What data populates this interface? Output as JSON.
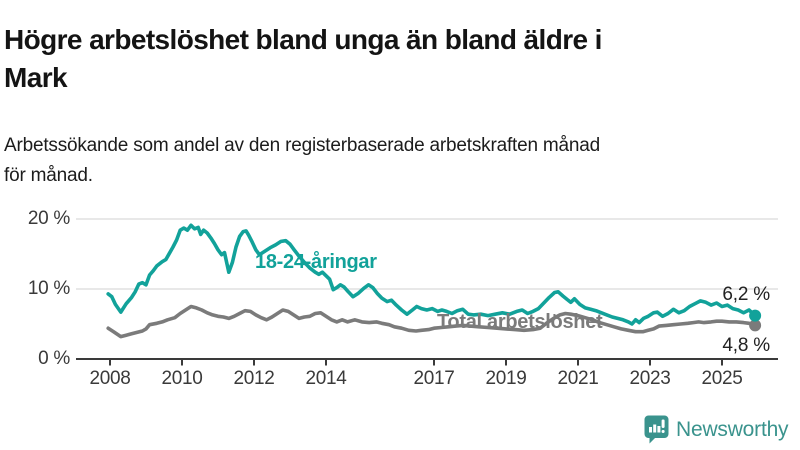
{
  "header": {
    "title_line1": "Högre arbetslöshet bland unga än bland äldre i",
    "title_line2": "Mark",
    "subtitle_line1": "Arbetssökande som andel av den registerbaserade arbetskraften månad",
    "subtitle_line2": "för månad."
  },
  "chart_data": {
    "type": "line",
    "unit": "%",
    "x_axis": {
      "ticks": [
        {
          "year": 2008,
          "label": "2008"
        },
        {
          "year": 2010,
          "label": "2010"
        },
        {
          "year": 2012,
          "label": "2012"
        },
        {
          "year": 2014,
          "label": "2014"
        },
        {
          "year": 2017,
          "label": "2017"
        },
        {
          "year": 2019,
          "label": "2019"
        },
        {
          "year": 2021,
          "label": "2021"
        },
        {
          "year": 2023,
          "label": "2023"
        },
        {
          "year": 2025,
          "label": "2025"
        }
      ],
      "range": [
        2007.7,
        2026.2
      ]
    },
    "y_axis": {
      "ticks": [
        {
          "value": 0,
          "label": "0 %"
        },
        {
          "value": 10,
          "label": "10 %"
        },
        {
          "value": 20,
          "label": "20 %"
        }
      ],
      "range": [
        0,
        21
      ],
      "grid": true
    },
    "colors": {
      "young": "#12a29a",
      "total": "#7b7b7b",
      "grid": "#d9d9d9",
      "axis": "#3a3a3a"
    },
    "series": [
      {
        "name": "18-24-åringar",
        "color": "#12a29a",
        "end_label": "6,2 %",
        "end_value": 6.2,
        "points": [
          [
            2007.95,
            9.3
          ],
          [
            2008.05,
            8.9
          ],
          [
            2008.15,
            7.8
          ],
          [
            2008.3,
            6.7
          ],
          [
            2008.45,
            7.9
          ],
          [
            2008.6,
            8.8
          ],
          [
            2008.7,
            9.6
          ],
          [
            2008.8,
            10.7
          ],
          [
            2008.9,
            10.9
          ],
          [
            2009.0,
            10.6
          ],
          [
            2009.1,
            12.0
          ],
          [
            2009.2,
            12.6
          ],
          [
            2009.3,
            13.3
          ],
          [
            2009.45,
            13.9
          ],
          [
            2009.55,
            14.2
          ],
          [
            2009.65,
            15.1
          ],
          [
            2009.75,
            16.0
          ],
          [
            2009.85,
            17.0
          ],
          [
            2009.95,
            18.4
          ],
          [
            2010.05,
            18.7
          ],
          [
            2010.15,
            18.4
          ],
          [
            2010.25,
            19.1
          ],
          [
            2010.35,
            18.6
          ],
          [
            2010.45,
            18.8
          ],
          [
            2010.52,
            17.8
          ],
          [
            2010.6,
            18.4
          ],
          [
            2010.7,
            18.0
          ],
          [
            2010.8,
            17.3
          ],
          [
            2010.9,
            16.5
          ],
          [
            2011.0,
            15.6
          ],
          [
            2011.1,
            14.9
          ],
          [
            2011.18,
            15.2
          ],
          [
            2011.3,
            12.4
          ],
          [
            2011.4,
            13.8
          ],
          [
            2011.5,
            16.0
          ],
          [
            2011.6,
            17.5
          ],
          [
            2011.7,
            18.2
          ],
          [
            2011.78,
            18.3
          ],
          [
            2011.85,
            17.7
          ],
          [
            2011.95,
            16.7
          ],
          [
            2012.05,
            15.6
          ],
          [
            2012.15,
            14.9
          ],
          [
            2012.3,
            15.4
          ],
          [
            2012.45,
            15.9
          ],
          [
            2012.6,
            16.3
          ],
          [
            2012.75,
            16.8
          ],
          [
            2012.88,
            16.9
          ],
          [
            2013.0,
            16.4
          ],
          [
            2013.1,
            15.7
          ],
          [
            2013.25,
            14.7
          ],
          [
            2013.4,
            13.8
          ],
          [
            2013.55,
            13.0
          ],
          [
            2013.7,
            12.4
          ],
          [
            2013.8,
            12.1
          ],
          [
            2013.9,
            12.4
          ],
          [
            2014.0,
            11.9
          ],
          [
            2014.1,
            11.4
          ],
          [
            2014.2,
            9.9
          ],
          [
            2014.3,
            10.2
          ],
          [
            2014.4,
            10.6
          ],
          [
            2014.5,
            10.3
          ],
          [
            2014.62,
            9.6
          ],
          [
            2014.75,
            8.9
          ],
          [
            2014.9,
            9.4
          ],
          [
            2015.05,
            10.1
          ],
          [
            2015.18,
            10.6
          ],
          [
            2015.3,
            10.2
          ],
          [
            2015.42,
            9.4
          ],
          [
            2015.55,
            8.7
          ],
          [
            2015.7,
            8.2
          ],
          [
            2015.82,
            8.4
          ],
          [
            2015.95,
            7.7
          ],
          [
            2016.1,
            7.0
          ],
          [
            2016.25,
            6.4
          ],
          [
            2016.4,
            7.0
          ],
          [
            2016.52,
            7.5
          ],
          [
            2016.65,
            7.2
          ],
          [
            2016.8,
            7.0
          ],
          [
            2016.95,
            7.2
          ],
          [
            2017.1,
            6.8
          ],
          [
            2017.22,
            7.0
          ],
          [
            2017.35,
            6.8
          ],
          [
            2017.5,
            6.5
          ],
          [
            2017.65,
            6.9
          ],
          [
            2017.8,
            7.1
          ],
          [
            2017.95,
            6.4
          ],
          [
            2018.1,
            6.3
          ],
          [
            2018.3,
            6.4
          ],
          [
            2018.5,
            6.2
          ],
          [
            2018.7,
            6.4
          ],
          [
            2018.9,
            6.6
          ],
          [
            2019.1,
            6.4
          ],
          [
            2019.3,
            6.8
          ],
          [
            2019.45,
            7.0
          ],
          [
            2019.6,
            6.5
          ],
          [
            2019.75,
            6.8
          ],
          [
            2019.9,
            7.2
          ],
          [
            2020.05,
            8.0
          ],
          [
            2020.2,
            8.8
          ],
          [
            2020.35,
            9.5
          ],
          [
            2020.45,
            9.6
          ],
          [
            2020.58,
            9.0
          ],
          [
            2020.7,
            8.5
          ],
          [
            2020.8,
            8.1
          ],
          [
            2020.9,
            8.6
          ],
          [
            2021.05,
            7.8
          ],
          [
            2021.2,
            7.3
          ],
          [
            2021.35,
            7.1
          ],
          [
            2021.5,
            6.9
          ],
          [
            2021.65,
            6.6
          ],
          [
            2021.8,
            6.3
          ],
          [
            2021.95,
            6.0
          ],
          [
            2022.1,
            5.8
          ],
          [
            2022.25,
            5.6
          ],
          [
            2022.4,
            5.3
          ],
          [
            2022.5,
            5.0
          ],
          [
            2022.6,
            5.6
          ],
          [
            2022.7,
            5.2
          ],
          [
            2022.82,
            5.8
          ],
          [
            2022.95,
            6.1
          ],
          [
            2023.1,
            6.6
          ],
          [
            2023.2,
            6.7
          ],
          [
            2023.35,
            6.1
          ],
          [
            2023.5,
            6.5
          ],
          [
            2023.65,
            7.1
          ],
          [
            2023.8,
            6.6
          ],
          [
            2023.95,
            6.9
          ],
          [
            2024.1,
            7.5
          ],
          [
            2024.25,
            7.9
          ],
          [
            2024.4,
            8.3
          ],
          [
            2024.55,
            8.1
          ],
          [
            2024.7,
            7.7
          ],
          [
            2024.85,
            8.0
          ],
          [
            2025.0,
            7.5
          ],
          [
            2025.15,
            7.7
          ],
          [
            2025.3,
            7.2
          ],
          [
            2025.45,
            7.0
          ],
          [
            2025.6,
            6.6
          ],
          [
            2025.75,
            7.0
          ],
          [
            2025.92,
            6.2
          ]
        ]
      },
      {
        "name": "Total arbetslöshet",
        "color": "#7b7b7b",
        "end_label": "4,8 %",
        "end_value": 4.8,
        "points": [
          [
            2007.95,
            4.4
          ],
          [
            2008.1,
            3.9
          ],
          [
            2008.3,
            3.2
          ],
          [
            2008.45,
            3.4
          ],
          [
            2008.6,
            3.6
          ],
          [
            2008.75,
            3.8
          ],
          [
            2008.9,
            4.0
          ],
          [
            2009.0,
            4.3
          ],
          [
            2009.1,
            4.9
          ],
          [
            2009.3,
            5.1
          ],
          [
            2009.45,
            5.3
          ],
          [
            2009.6,
            5.6
          ],
          [
            2009.8,
            5.9
          ],
          [
            2009.95,
            6.5
          ],
          [
            2010.1,
            7.0
          ],
          [
            2010.25,
            7.5
          ],
          [
            2010.4,
            7.3
          ],
          [
            2010.55,
            7.0
          ],
          [
            2010.7,
            6.6
          ],
          [
            2010.85,
            6.3
          ],
          [
            2011.0,
            6.1
          ],
          [
            2011.15,
            6.0
          ],
          [
            2011.3,
            5.8
          ],
          [
            2011.45,
            6.1
          ],
          [
            2011.6,
            6.5
          ],
          [
            2011.75,
            6.9
          ],
          [
            2011.9,
            6.8
          ],
          [
            2012.05,
            6.3
          ],
          [
            2012.2,
            5.9
          ],
          [
            2012.35,
            5.6
          ],
          [
            2012.5,
            6.0
          ],
          [
            2012.65,
            6.5
          ],
          [
            2012.8,
            7.0
          ],
          [
            2012.95,
            6.8
          ],
          [
            2013.1,
            6.3
          ],
          [
            2013.25,
            5.8
          ],
          [
            2013.4,
            6.0
          ],
          [
            2013.55,
            6.1
          ],
          [
            2013.7,
            6.5
          ],
          [
            2013.85,
            6.6
          ],
          [
            2014.0,
            6.1
          ],
          [
            2014.15,
            5.6
          ],
          [
            2014.3,
            5.3
          ],
          [
            2014.45,
            5.6
          ],
          [
            2014.6,
            5.3
          ],
          [
            2014.8,
            5.6
          ],
          [
            2015.0,
            5.3
          ],
          [
            2015.2,
            5.2
          ],
          [
            2015.4,
            5.3
          ],
          [
            2015.55,
            5.1
          ],
          [
            2015.75,
            4.9
          ],
          [
            2015.9,
            4.6
          ],
          [
            2016.1,
            4.4
          ],
          [
            2016.3,
            4.1
          ],
          [
            2016.5,
            4.0
          ],
          [
            2016.65,
            4.1
          ],
          [
            2016.85,
            4.2
          ],
          [
            2017.0,
            4.4
          ],
          [
            2017.2,
            4.5
          ],
          [
            2017.4,
            4.6
          ],
          [
            2017.6,
            4.7
          ],
          [
            2017.8,
            4.8
          ],
          [
            2018.0,
            4.7
          ],
          [
            2018.25,
            4.6
          ],
          [
            2018.5,
            4.5
          ],
          [
            2018.75,
            4.4
          ],
          [
            2019.0,
            4.3
          ],
          [
            2019.25,
            4.2
          ],
          [
            2019.5,
            4.1
          ],
          [
            2019.75,
            4.2
          ],
          [
            2019.95,
            4.4
          ],
          [
            2020.15,
            5.2
          ],
          [
            2020.35,
            5.9
          ],
          [
            2020.5,
            6.3
          ],
          [
            2020.65,
            6.5
          ],
          [
            2020.8,
            6.4
          ],
          [
            2021.0,
            6.2
          ],
          [
            2021.2,
            5.9
          ],
          [
            2021.4,
            5.6
          ],
          [
            2021.6,
            5.2
          ],
          [
            2021.8,
            4.9
          ],
          [
            2022.0,
            4.6
          ],
          [
            2022.2,
            4.3
          ],
          [
            2022.4,
            4.1
          ],
          [
            2022.6,
            3.9
          ],
          [
            2022.8,
            3.9
          ],
          [
            2022.95,
            4.1
          ],
          [
            2023.1,
            4.3
          ],
          [
            2023.25,
            4.7
          ],
          [
            2023.45,
            4.8
          ],
          [
            2023.65,
            4.9
          ],
          [
            2023.85,
            5.0
          ],
          [
            2024.05,
            5.1
          ],
          [
            2024.2,
            5.2
          ],
          [
            2024.35,
            5.3
          ],
          [
            2024.5,
            5.2
          ],
          [
            2024.7,
            5.3
          ],
          [
            2024.85,
            5.4
          ],
          [
            2025.0,
            5.4
          ],
          [
            2025.2,
            5.3
          ],
          [
            2025.4,
            5.3
          ],
          [
            2025.6,
            5.2
          ],
          [
            2025.75,
            5.1
          ],
          [
            2025.92,
            4.8
          ]
        ]
      }
    ]
  },
  "logo": {
    "text": "Newsworthy",
    "color": "#3a938d"
  }
}
